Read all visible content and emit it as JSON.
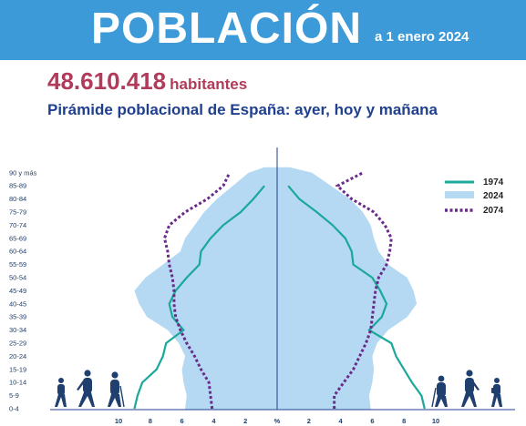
{
  "header": {
    "title": "POBLACIÓN",
    "date": "a 1 enero 2024",
    "population_value": "48.610.418",
    "population_unit": "habitantes",
    "subtitle": "Pirámide poblacional de España: ayer, hoy y mañana"
  },
  "colors": {
    "banner": "#3d9ad8",
    "s1974": "#1aa89a",
    "s2024": "#b5d9f2",
    "s2074": "#6a2a8a",
    "axis": "#1f3f8f"
  },
  "chart_data": {
    "type": "area",
    "title": "Pirámide poblacional de España: ayer, hoy y mañana",
    "xlabel": "%",
    "ylabel": "",
    "age_groups": [
      "0-4",
      "5-9",
      "10-14",
      "15-19",
      "20-24",
      "25-29",
      "30-34",
      "35-39",
      "40-45",
      "45-49",
      "50-54",
      "55-59",
      "60-64",
      "65-69",
      "70-74",
      "75-79",
      "80-84",
      "85-89",
      "90 y más"
    ],
    "x_ticks": [
      "10",
      "8",
      "6",
      "4",
      "2",
      "%",
      "2",
      "4",
      "6",
      "8",
      "10"
    ],
    "xlim": [
      -10,
      10
    ],
    "legend_position": "right",
    "series": [
      {
        "name": "1974",
        "style": "line",
        "male_left": [
          9.0,
          8.8,
          8.5,
          7.6,
          7.2,
          7.0,
          5.9,
          6.6,
          6.8,
          6.4,
          5.7,
          4.9,
          4.8,
          4.2,
          3.4,
          2.3,
          1.5,
          0.8
        ],
        "female_right": [
          9.3,
          9.1,
          8.5,
          8.0,
          7.5,
          7.2,
          5.8,
          6.6,
          6.9,
          6.5,
          6.0,
          4.8,
          4.7,
          4.3,
          3.5,
          2.5,
          1.4,
          0.7
        ]
      },
      {
        "name": "2024",
        "style": "area",
        "male_left": [
          5.8,
          5.7,
          5.9,
          6.0,
          5.8,
          6.2,
          6.9,
          8.2,
          8.7,
          9.0,
          8.3,
          7.2,
          6.1,
          5.8,
          5.2,
          4.6,
          3.8,
          2.8,
          1.8
        ],
        "female_right": [
          5.9,
          5.8,
          6.0,
          6.1,
          6.0,
          6.3,
          7.0,
          8.2,
          8.8,
          8.6,
          8.2,
          7.0,
          6.4,
          6.1,
          5.9,
          5.4,
          4.6,
          3.4,
          2.2
        ]
      },
      {
        "name": "2074",
        "style": "dotted",
        "male_left": [
          4.1,
          4.2,
          4.3,
          4.8,
          5.2,
          5.7,
          6.1,
          6.4,
          6.5,
          6.5,
          6.6,
          6.8,
          6.9,
          7.1,
          6.8,
          5.8,
          4.4,
          3.4,
          3.0
        ],
        "female_right": [
          3.6,
          3.6,
          4.2,
          4.8,
          5.2,
          5.6,
          5.9,
          6.0,
          6.1,
          6.2,
          6.4,
          6.9,
          7.1,
          7.2,
          6.8,
          6.1,
          4.7,
          3.8,
          5.4
        ]
      }
    ]
  }
}
